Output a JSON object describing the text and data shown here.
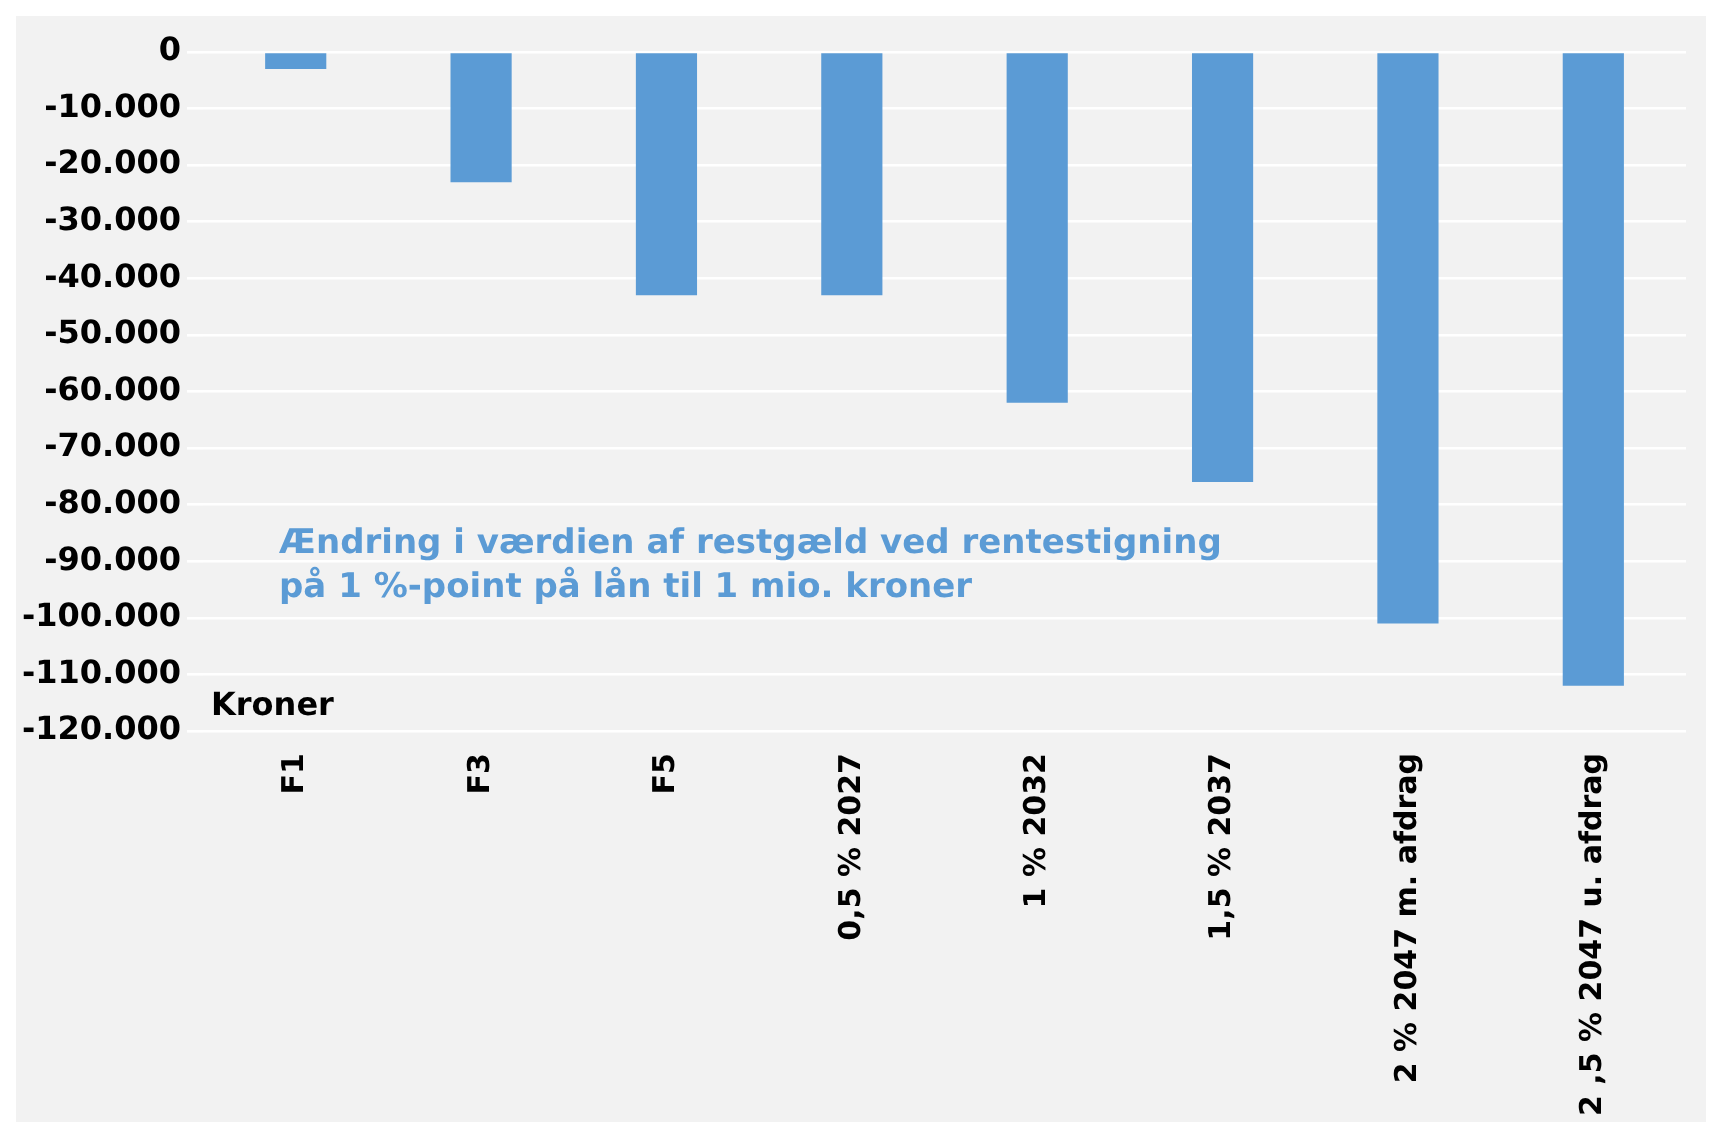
{
  "chart_data": {
    "type": "bar",
    "ylabel": "Kroner",
    "annotations": [
      "Ændring i værdien af restgæld ved rentestigning på 1 %-point på lån til 1 mio. kroner"
    ],
    "categories": [
      "F1",
      "F3",
      "F5",
      "0,5 % 2027",
      "1 % 2032",
      "1,5 % 2037",
      "2 % 2047 m. afdrag",
      "2 ,5 % 2047 u. afdrag"
    ],
    "values": [
      -3000,
      -23000,
      -43000,
      -43000,
      -62000,
      -76000,
      -101000,
      -112000
    ],
    "color": "#5b9bd5",
    "ylim": [
      -120000,
      0
    ],
    "yticks": [
      {
        "value": -120000,
        "label": "-120.000"
      },
      {
        "value": -110000,
        "label": "-110.000"
      },
      {
        "value": -100000,
        "label": "-100.000"
      },
      {
        "value": -90000,
        "label": "-90.000"
      },
      {
        "value": -80000,
        "label": "-80.000"
      },
      {
        "value": -70000,
        "label": "-70.000"
      },
      {
        "value": -60000,
        "label": "-60.000"
      },
      {
        "value": -50000,
        "label": "-50.000"
      },
      {
        "value": -40000,
        "label": "-40.000"
      },
      {
        "value": -30000,
        "label": "-30.000"
      },
      {
        "value": -20000,
        "label": "-20.000"
      },
      {
        "value": -10000,
        "label": "-10.000"
      },
      0
    ],
    "grid": "y",
    "legend": false
  }
}
